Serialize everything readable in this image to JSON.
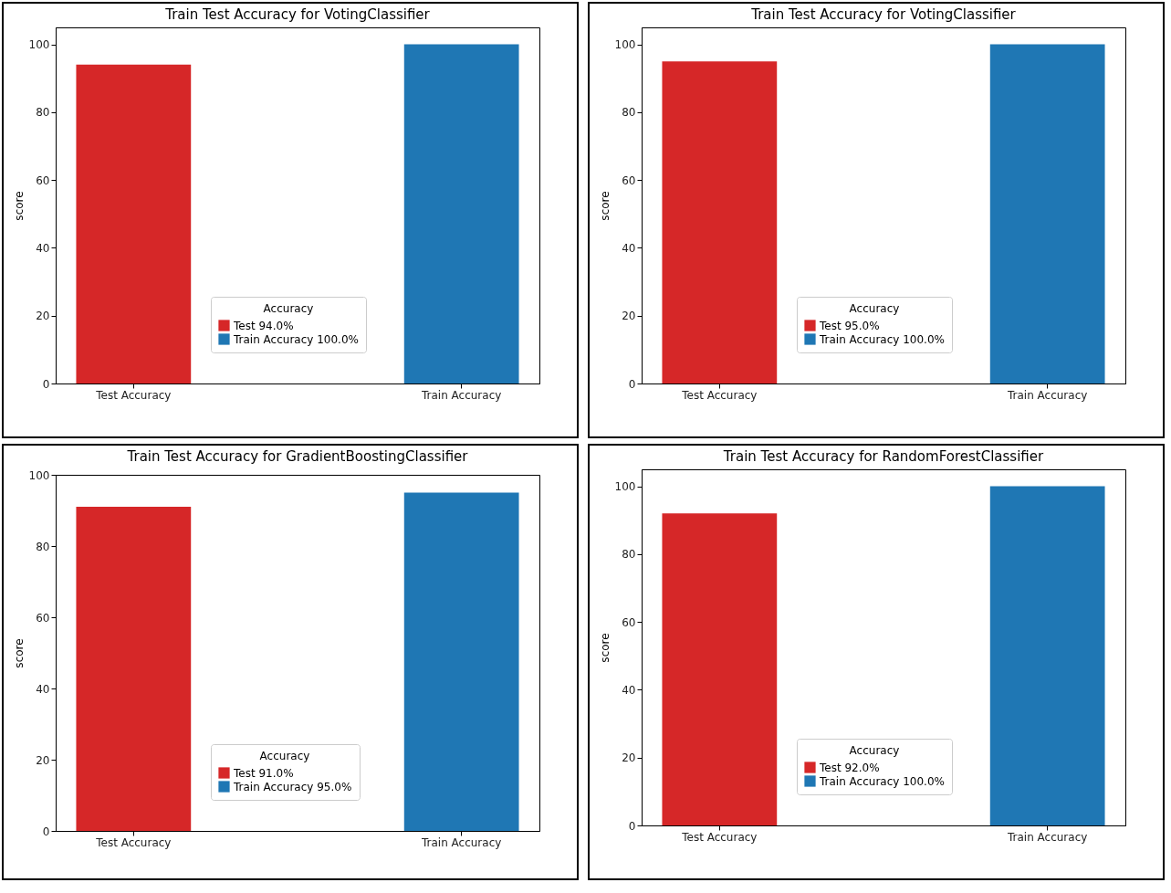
{
  "chart_data": [
    {
      "type": "bar",
      "title": "Train Test Accuracy for VotingClassifier",
      "ylabel": "score",
      "legend_title": "Accuracy",
      "categories": [
        "Test Accuracy",
        "Train Accuracy"
      ],
      "series": [
        {
          "name": "Test 94.0%",
          "color": "#d62728",
          "values": [
            94,
            null
          ]
        },
        {
          "name": "Train Accuracy 100.0%",
          "color": "#1f77b4",
          "values": [
            null,
            100
          ]
        }
      ],
      "ylim": [
        0,
        105
      ],
      "yticks": [
        0,
        20,
        40,
        60,
        80,
        100
      ],
      "legend": "bottom",
      "grid": false
    },
    {
      "type": "bar",
      "title": "Train Test Accuracy for VotingClassifier",
      "ylabel": "score",
      "legend_title": "Accuracy",
      "categories": [
        "Test Accuracy",
        "Train Accuracy"
      ],
      "series": [
        {
          "name": "Test 95.0%",
          "color": "#d62728",
          "values": [
            95,
            null
          ]
        },
        {
          "name": "Train Accuracy 100.0%",
          "color": "#1f77b4",
          "values": [
            null,
            100
          ]
        }
      ],
      "ylim": [
        0,
        105
      ],
      "yticks": [
        0,
        20,
        40,
        60,
        80,
        100
      ],
      "legend": "bottom",
      "grid": false
    },
    {
      "type": "bar",
      "title": "Train Test Accuracy for GradientBoostingClassifier",
      "ylabel": "score",
      "legend_title": "Accuracy",
      "categories": [
        "Test Accuracy",
        "Train Accuracy"
      ],
      "series": [
        {
          "name": "Test 91.0%",
          "color": "#d62728",
          "values": [
            91,
            null
          ]
        },
        {
          "name": "Train Accuracy 95.0%",
          "color": "#1f77b4",
          "values": [
            null,
            95
          ]
        }
      ],
      "ylim": [
        0,
        100
      ],
      "yticks": [
        0,
        20,
        40,
        60,
        80,
        100
      ],
      "legend": "bottom",
      "grid": false
    },
    {
      "type": "bar",
      "title": "Train Test Accuracy for RandomForestClassifier",
      "ylabel": "score",
      "legend_title": "Accuracy",
      "categories": [
        "Test Accuracy",
        "Train Accuracy"
      ],
      "series": [
        {
          "name": "Test 92.0%",
          "color": "#d62728",
          "values": [
            92,
            null
          ]
        },
        {
          "name": "Train Accuracy 100.0%",
          "color": "#1f77b4",
          "values": [
            null,
            100
          ]
        }
      ],
      "ylim": [
        0,
        105
      ],
      "yticks": [
        0,
        20,
        40,
        60,
        80,
        100
      ],
      "legend": "bottom",
      "grid": false
    }
  ]
}
